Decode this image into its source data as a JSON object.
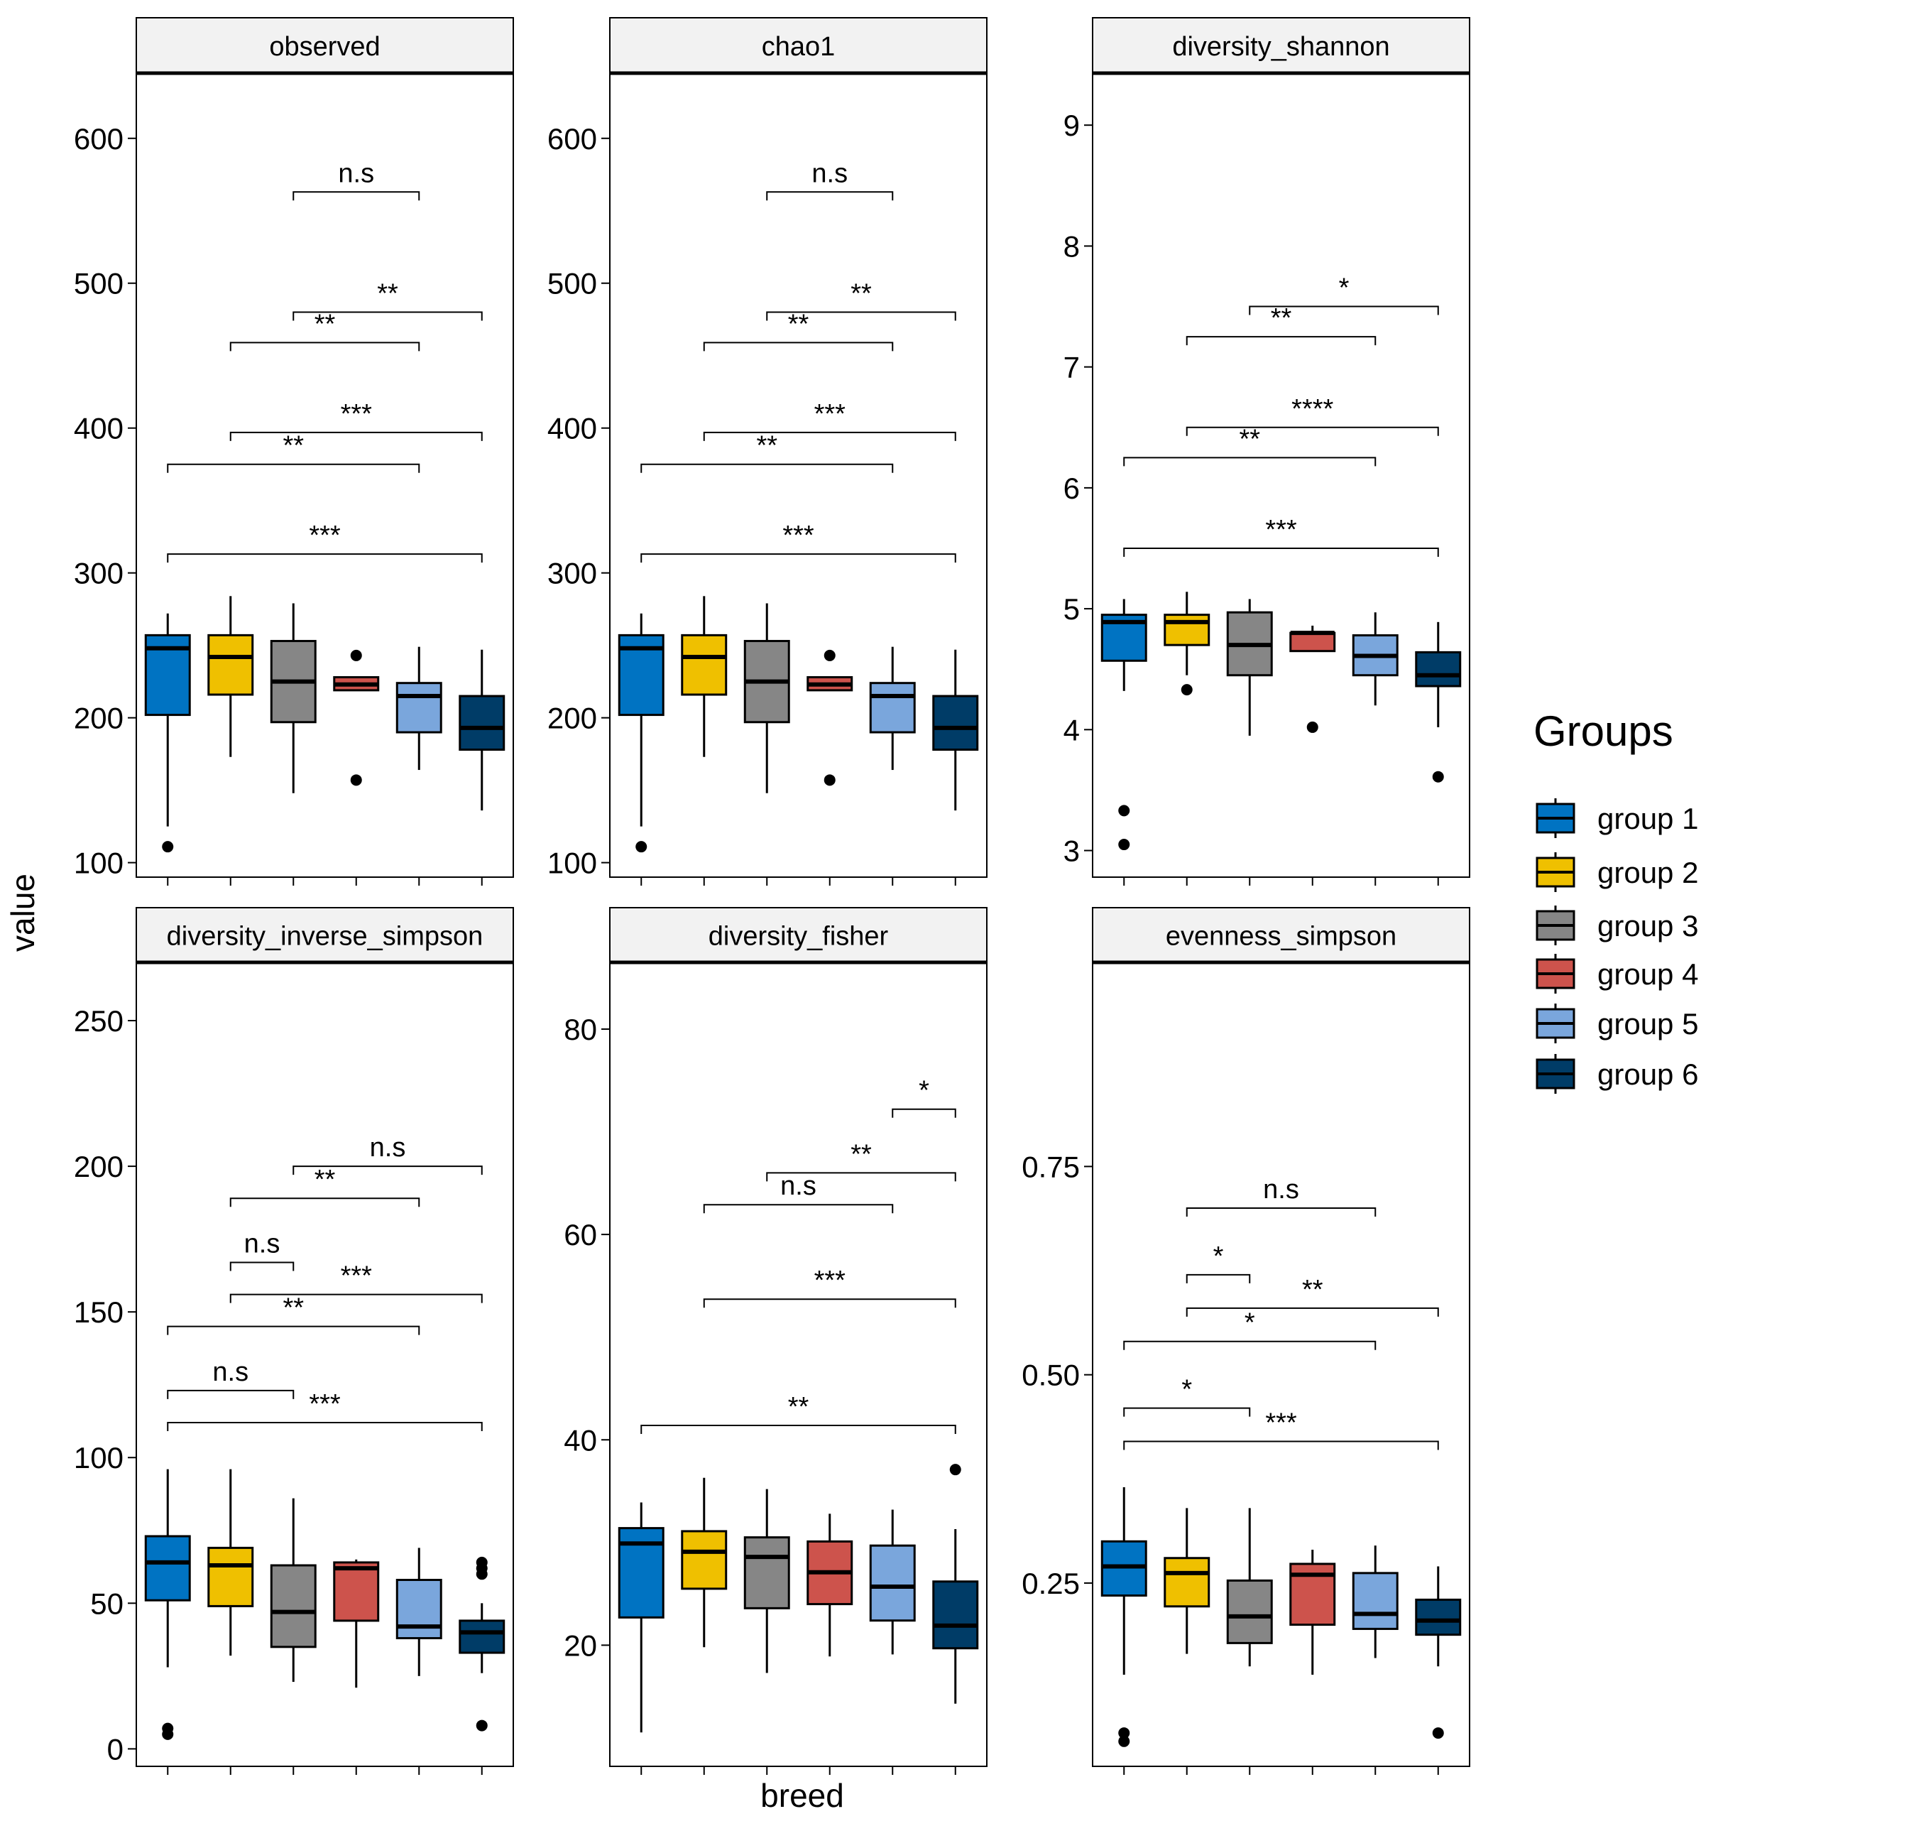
{
  "figure": {
    "ylabel": "value",
    "xlabel": "breed",
    "legend": {
      "title": "Groups",
      "placement": "right",
      "entries": [
        "group 1",
        "group 2",
        "group 3",
        "group 4",
        "group 5",
        "group 6"
      ]
    }
  },
  "colors": {
    "group 1": "#0073C2",
    "group 2": "#EFC000",
    "group 3": "#868686",
    "group 4": "#CD534C",
    "group 5": "#7AA6DC",
    "group 6": "#003C67",
    "strip": "#F2F2F2"
  },
  "chart_data": [
    {
      "type": "boxplot",
      "title": "observed",
      "ylim": [
        90,
        645
      ],
      "yticks": [
        100,
        200,
        300,
        400,
        500,
        600
      ],
      "ytick_labels": [
        "100",
        "200",
        "300",
        "400",
        "500",
        "600"
      ],
      "boxes": [
        {
          "group": "group 1",
          "whisker_low": 125,
          "q1": 202,
          "median": 248,
          "q3": 257,
          "whisker_high": 272,
          "outliers": [
            111
          ]
        },
        {
          "group": "group 2",
          "whisker_low": 173,
          "q1": 216,
          "median": 242,
          "q3": 257,
          "whisker_high": 284,
          "outliers": []
        },
        {
          "group": "group 3",
          "whisker_low": 148,
          "q1": 197,
          "median": 225,
          "q3": 253,
          "whisker_high": 279,
          "outliers": []
        },
        {
          "group": "group 4",
          "whisker_low": 219,
          "q1": 219,
          "median": 223,
          "q3": 228,
          "whisker_high": 228,
          "outliers": [
            157,
            243
          ]
        },
        {
          "group": "group 5",
          "whisker_low": 164,
          "q1": 190,
          "median": 215,
          "q3": 224,
          "whisker_high": 249,
          "outliers": []
        },
        {
          "group": "group 6",
          "whisker_low": 136,
          "q1": 178,
          "median": 193,
          "q3": 215,
          "whisker_high": 247,
          "outliers": []
        }
      ],
      "comparisons": [
        {
          "from": 1,
          "to": 6,
          "y": 313,
          "label": "***"
        },
        {
          "from": 1,
          "to": 5,
          "y": 375,
          "label": "**"
        },
        {
          "from": 2,
          "to": 6,
          "y": 397,
          "label": "***"
        },
        {
          "from": 2,
          "to": 5,
          "y": 459,
          "label": "**"
        },
        {
          "from": 3,
          "to": 6,
          "y": 480,
          "label": "**"
        },
        {
          "from": 3,
          "to": 5,
          "y": 563,
          "label": "n.s"
        }
      ]
    },
    {
      "type": "boxplot",
      "title": "chao1",
      "ylim": [
        90,
        645
      ],
      "yticks": [
        100,
        200,
        300,
        400,
        500,
        600
      ],
      "ytick_labels": [
        "100",
        "200",
        "300",
        "400",
        "500",
        "600"
      ],
      "boxes": [
        {
          "group": "group 1",
          "whisker_low": 125,
          "q1": 202,
          "median": 248,
          "q3": 257,
          "whisker_high": 272,
          "outliers": [
            111
          ]
        },
        {
          "group": "group 2",
          "whisker_low": 173,
          "q1": 216,
          "median": 242,
          "q3": 257,
          "whisker_high": 284,
          "outliers": []
        },
        {
          "group": "group 3",
          "whisker_low": 148,
          "q1": 197,
          "median": 225,
          "q3": 253,
          "whisker_high": 279,
          "outliers": []
        },
        {
          "group": "group 4",
          "whisker_low": 219,
          "q1": 219,
          "median": 223,
          "q3": 228,
          "whisker_high": 228,
          "outliers": [
            157,
            243
          ]
        },
        {
          "group": "group 5",
          "whisker_low": 164,
          "q1": 190,
          "median": 215,
          "q3": 224,
          "whisker_high": 249,
          "outliers": []
        },
        {
          "group": "group 6",
          "whisker_low": 136,
          "q1": 178,
          "median": 193,
          "q3": 215,
          "whisker_high": 247,
          "outliers": []
        }
      ],
      "comparisons": [
        {
          "from": 1,
          "to": 6,
          "y": 313,
          "label": "***"
        },
        {
          "from": 1,
          "to": 5,
          "y": 375,
          "label": "**"
        },
        {
          "from": 2,
          "to": 6,
          "y": 397,
          "label": "***"
        },
        {
          "from": 2,
          "to": 5,
          "y": 459,
          "label": "**"
        },
        {
          "from": 3,
          "to": 6,
          "y": 480,
          "label": "**"
        },
        {
          "from": 3,
          "to": 5,
          "y": 563,
          "label": "n.s"
        }
      ]
    },
    {
      "type": "boxplot",
      "title": "diversity_shannon",
      "ylim": [
        2.78,
        9.43
      ],
      "yticks": [
        3,
        4,
        5,
        6,
        7,
        8,
        9
      ],
      "ytick_labels": [
        "3",
        "4",
        "5",
        "6",
        "7",
        "8",
        "9"
      ],
      "boxes": [
        {
          "group": "group 1",
          "whisker_low": 4.32,
          "q1": 4.57,
          "median": 4.89,
          "q3": 4.95,
          "whisker_high": 5.08,
          "outliers": [
            3.05,
            3.33
          ]
        },
        {
          "group": "group 2",
          "whisker_low": 4.45,
          "q1": 4.7,
          "median": 4.89,
          "q3": 4.95,
          "whisker_high": 5.14,
          "outliers": [
            4.33
          ]
        },
        {
          "group": "group 3",
          "whisker_low": 3.95,
          "q1": 4.45,
          "median": 4.7,
          "q3": 4.97,
          "whisker_high": 5.08,
          "outliers": []
        },
        {
          "group": "group 4",
          "whisker_low": 4.65,
          "q1": 4.65,
          "median": 4.8,
          "q3": 4.8,
          "whisker_high": 4.86,
          "outliers": [
            4.02
          ]
        },
        {
          "group": "group 5",
          "whisker_low": 4.2,
          "q1": 4.45,
          "median": 4.61,
          "q3": 4.78,
          "whisker_high": 4.97,
          "outliers": []
        },
        {
          "group": "group 6",
          "whisker_low": 4.02,
          "q1": 4.36,
          "median": 4.45,
          "q3": 4.64,
          "whisker_high": 4.89,
          "outliers": [
            3.61
          ]
        }
      ],
      "comparisons": [
        {
          "from": 1,
          "to": 6,
          "y": 5.5,
          "label": "***"
        },
        {
          "from": 1,
          "to": 5,
          "y": 6.25,
          "label": "**"
        },
        {
          "from": 2,
          "to": 6,
          "y": 6.5,
          "label": "****"
        },
        {
          "from": 2,
          "to": 5,
          "y": 7.25,
          "label": "**"
        },
        {
          "from": 3,
          "to": 6,
          "y": 7.5,
          "label": "*"
        }
      ]
    },
    {
      "type": "boxplot",
      "title": "diversity_inverse_simpson",
      "ylim": [
        -6,
        270
      ],
      "yticks": [
        0,
        50,
        100,
        150,
        200,
        250
      ],
      "ytick_labels": [
        "0",
        "50",
        "100",
        "150",
        "200",
        "250"
      ],
      "boxes": [
        {
          "group": "group 1",
          "whisker_low": 28,
          "q1": 51,
          "median": 64,
          "q3": 73,
          "whisker_high": 96,
          "outliers": [
            5,
            7
          ]
        },
        {
          "group": "group 2",
          "whisker_low": 32,
          "q1": 49,
          "median": 63,
          "q3": 69,
          "whisker_high": 96,
          "outliers": []
        },
        {
          "group": "group 3",
          "whisker_low": 23,
          "q1": 35,
          "median": 47,
          "q3": 63,
          "whisker_high": 86,
          "outliers": []
        },
        {
          "group": "group 4",
          "whisker_low": 21,
          "q1": 44,
          "median": 62,
          "q3": 64,
          "whisker_high": 65,
          "outliers": []
        },
        {
          "group": "group 5",
          "whisker_low": 25,
          "q1": 38,
          "median": 42,
          "q3": 58,
          "whisker_high": 69,
          "outliers": []
        },
        {
          "group": "group 6",
          "whisker_low": 26,
          "q1": 33,
          "median": 40,
          "q3": 44,
          "whisker_high": 50,
          "outliers": [
            8,
            60,
            62,
            64
          ]
        }
      ],
      "comparisons": [
        {
          "from": 1,
          "to": 6,
          "y": 112,
          "label": "***"
        },
        {
          "from": 1,
          "to": 3,
          "y": 123,
          "label": "n.s"
        },
        {
          "from": 1,
          "to": 5,
          "y": 145,
          "label": "**"
        },
        {
          "from": 2,
          "to": 6,
          "y": 156,
          "label": "***"
        },
        {
          "from": 2,
          "to": 3,
          "y": 167,
          "label": "n.s"
        },
        {
          "from": 2,
          "to": 5,
          "y": 189,
          "label": "**"
        },
        {
          "from": 3,
          "to": 6,
          "y": 200,
          "label": "n.s"
        }
      ]
    },
    {
      "type": "boxplot",
      "title": "diversity_fisher",
      "ylim": [
        8.2,
        86.5
      ],
      "yticks": [
        20,
        40,
        60,
        80
      ],
      "ytick_labels": [
        "20",
        "40",
        "60",
        "80"
      ],
      "boxes": [
        {
          "group": "group 1",
          "whisker_low": 11.5,
          "q1": 22.7,
          "median": 29.9,
          "q3": 31.4,
          "whisker_high": 33.9,
          "outliers": []
        },
        {
          "group": "group 2",
          "whisker_low": 19.8,
          "q1": 25.5,
          "median": 29.1,
          "q3": 31.1,
          "whisker_high": 36.3,
          "outliers": []
        },
        {
          "group": "group 3",
          "whisker_low": 17.3,
          "q1": 23.6,
          "median": 28.6,
          "q3": 30.5,
          "whisker_high": 35.2,
          "outliers": []
        },
        {
          "group": "group 4",
          "whisker_low": 18.9,
          "q1": 24.0,
          "median": 27.1,
          "q3": 30.1,
          "whisker_high": 32.8,
          "outliers": []
        },
        {
          "group": "group 5",
          "whisker_low": 19.1,
          "q1": 22.4,
          "median": 25.7,
          "q3": 29.7,
          "whisker_high": 33.2,
          "outliers": []
        },
        {
          "group": "group 6",
          "whisker_low": 14.3,
          "q1": 19.7,
          "median": 21.9,
          "q3": 26.2,
          "whisker_high": 31.3,
          "outliers": [
            37.1
          ]
        }
      ],
      "comparisons": [
        {
          "from": 1,
          "to": 6,
          "y": 41.4,
          "label": "**"
        },
        {
          "from": 2,
          "to": 6,
          "y": 53.7,
          "label": "***"
        },
        {
          "from": 2,
          "to": 5,
          "y": 62.9,
          "label": "n.s"
        },
        {
          "from": 3,
          "to": 6,
          "y": 66.0,
          "label": "**"
        },
        {
          "from": 5,
          "to": 6,
          "y": 72.2,
          "label": "*"
        }
      ]
    },
    {
      "type": "boxplot",
      "title": "evenness_simpson",
      "ylim": [
        0.03,
        0.995
      ],
      "yticks": [
        0.25,
        0.5,
        0.75
      ],
      "ytick_labels": [
        "0.25",
        "0.50",
        "0.75"
      ],
      "boxes": [
        {
          "group": "group 1",
          "whisker_low": 0.14,
          "q1": 0.235,
          "median": 0.27,
          "q3": 0.3,
          "whisker_high": 0.365,
          "outliers": [
            0.06,
            0.07
          ]
        },
        {
          "group": "group 2",
          "whisker_low": 0.165,
          "q1": 0.222,
          "median": 0.262,
          "q3": 0.28,
          "whisker_high": 0.34,
          "outliers": []
        },
        {
          "group": "group 3",
          "whisker_low": 0.15,
          "q1": 0.178,
          "median": 0.21,
          "q3": 0.253,
          "whisker_high": 0.34,
          "outliers": []
        },
        {
          "group": "group 4",
          "whisker_low": 0.14,
          "q1": 0.2,
          "median": 0.26,
          "q3": 0.273,
          "whisker_high": 0.29,
          "outliers": []
        },
        {
          "group": "group 5",
          "whisker_low": 0.16,
          "q1": 0.195,
          "median": 0.213,
          "q3": 0.262,
          "whisker_high": 0.295,
          "outliers": []
        },
        {
          "group": "group 6",
          "whisker_low": 0.15,
          "q1": 0.188,
          "median": 0.205,
          "q3": 0.23,
          "whisker_high": 0.27,
          "outliers": [
            0.07
          ]
        }
      ],
      "comparisons": [
        {
          "from": 1,
          "to": 6,
          "y": 0.42,
          "label": "***"
        },
        {
          "from": 1,
          "to": 3,
          "y": 0.46,
          "label": "*"
        },
        {
          "from": 1,
          "to": 5,
          "y": 0.54,
          "label": "*"
        },
        {
          "from": 2,
          "to": 6,
          "y": 0.58,
          "label": "**"
        },
        {
          "from": 2,
          "to": 3,
          "y": 0.62,
          "label": "*"
        },
        {
          "from": 2,
          "to": 5,
          "y": 0.7,
          "label": "n.s"
        }
      ]
    }
  ]
}
